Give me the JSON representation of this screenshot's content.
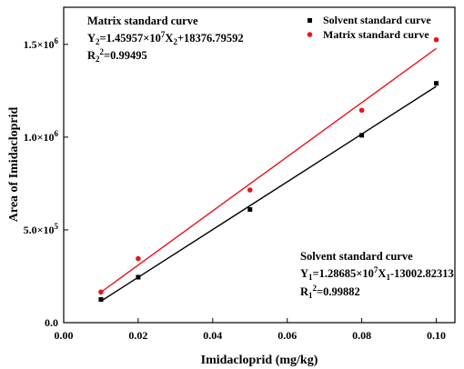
{
  "chart_data": {
    "type": "scatter",
    "xlabel": "Imidacloprid (mg/kg)",
    "ylabel": "Area of Imidacloprid",
    "xlim": [
      0.0,
      0.105
    ],
    "ylim": [
      0,
      1700000
    ],
    "x_ticks": [
      {
        "value": 0.0,
        "label": "0.00"
      },
      {
        "value": 0.02,
        "label": "0.02"
      },
      {
        "value": 0.04,
        "label": "0.04"
      },
      {
        "value": 0.06,
        "label": "0.06"
      },
      {
        "value": 0.08,
        "label": "0.08"
      },
      {
        "value": 0.1,
        "label": "0.10"
      }
    ],
    "y_ticks": [
      {
        "value": 0,
        "mant": "0.0",
        "exp": ""
      },
      {
        "value": 500000,
        "mant": "5.0×10",
        "exp": "5"
      },
      {
        "value": 1000000,
        "mant": "1.0×10",
        "exp": "6"
      },
      {
        "value": 1500000,
        "mant": "1.5×10",
        "exp": "6"
      }
    ],
    "grid": false,
    "legend_position": "top-right",
    "series": [
      {
        "name": "Solvent standard curve",
        "color": "#000000",
        "marker": "square",
        "x": [
          0.01,
          0.02,
          0.05,
          0.08,
          0.1
        ],
        "y": [
          125000,
          245000,
          610000,
          1010000,
          1290000
        ],
        "fit": {
          "slope": 12868500,
          "intercept": -13002.82313,
          "x_range": [
            0.01,
            0.1
          ]
        }
      },
      {
        "name": "Matrix standard curve",
        "color": "#e8141b",
        "marker": "circle",
        "x": [
          0.01,
          0.02,
          0.05,
          0.08,
          0.1
        ],
        "y": [
          165000,
          345000,
          715000,
          1145000,
          1525000
        ],
        "fit": {
          "slope": 14595700,
          "intercept": 18376.79592,
          "x_range": [
            0.01,
            0.1
          ]
        }
      }
    ],
    "annotations": {
      "matrix": {
        "title": "Matrix standard curve",
        "eq_y": "Y",
        "eq_y_sub": "2",
        "eq_mid": "=1.45957×10",
        "eq_exp": "7",
        "eq_x": "X",
        "eq_x_sub": "2",
        "eq_tail": "+18376.79592",
        "r_label": "R",
        "r_sub": "2",
        "r_sup": "2",
        "r_value": "=0.99495"
      },
      "solvent": {
        "title": "Solvent standard curve",
        "eq_y": "Y",
        "eq_y_sub": "1",
        "eq_mid": "=1.28685×10",
        "eq_exp": "7",
        "eq_x": "X",
        "eq_x_sub": "1",
        "eq_tail": "-13002.82313",
        "r_label": "R",
        "r_sub": "1",
        "r_sup": "2",
        "r_value": "=0.99882"
      }
    }
  }
}
